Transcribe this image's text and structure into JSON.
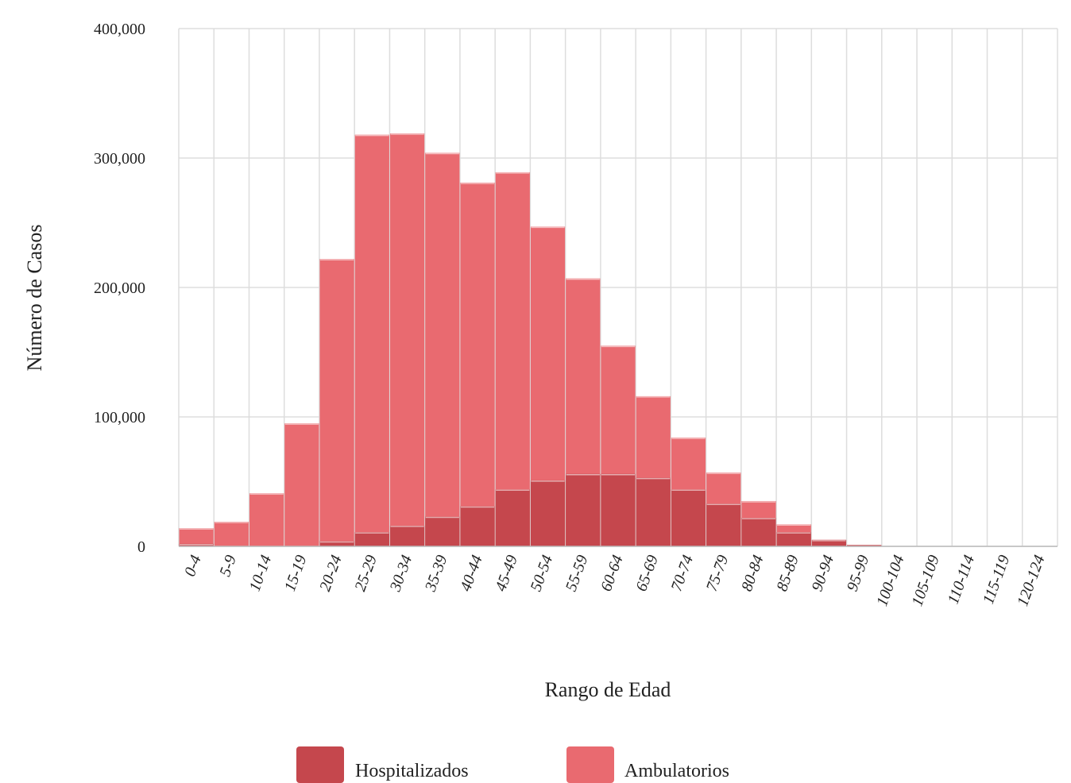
{
  "chart_data": {
    "type": "bar",
    "stacked": false,
    "overlaid": true,
    "xlabel": "Rango de Edad",
    "ylabel": "Número de Casos",
    "ylim": [
      0,
      400000
    ],
    "yticks": [
      0,
      100000,
      200000,
      300000,
      400000
    ],
    "ytick_labels": [
      "0",
      "100,000",
      "200,000",
      "300,000",
      "400,000"
    ],
    "grid": true,
    "legend_position": "bottom",
    "categories": [
      "0-4",
      "5-9",
      "10-14",
      "15-19",
      "20-24",
      "25-29",
      "30-34",
      "35-39",
      "40-44",
      "45-49",
      "50-54",
      "55-59",
      "60-64",
      "65-69",
      "70-74",
      "75-79",
      "80-84",
      "85-89",
      "90-94",
      "95-99",
      "100-104",
      "105-109",
      "110-114",
      "115-119",
      "120-124"
    ],
    "series": [
      {
        "name": "Ambulatorios",
        "color": "#e96a70",
        "values": [
          14000,
          19000,
          41000,
          95000,
          222000,
          318000,
          319000,
          304000,
          281000,
          289000,
          247000,
          207000,
          155000,
          116000,
          84000,
          57000,
          35000,
          17000,
          5000,
          1000,
          200,
          100,
          50,
          20,
          10
        ]
      },
      {
        "name": "Hospitalizados",
        "color": "#c5474d",
        "values": [
          2000,
          0,
          0,
          0,
          4000,
          11000,
          16000,
          23000,
          31000,
          44000,
          51000,
          56000,
          56000,
          53000,
          44000,
          33000,
          22000,
          11000,
          5000,
          1000,
          200,
          100,
          50,
          20,
          10
        ]
      }
    ]
  }
}
